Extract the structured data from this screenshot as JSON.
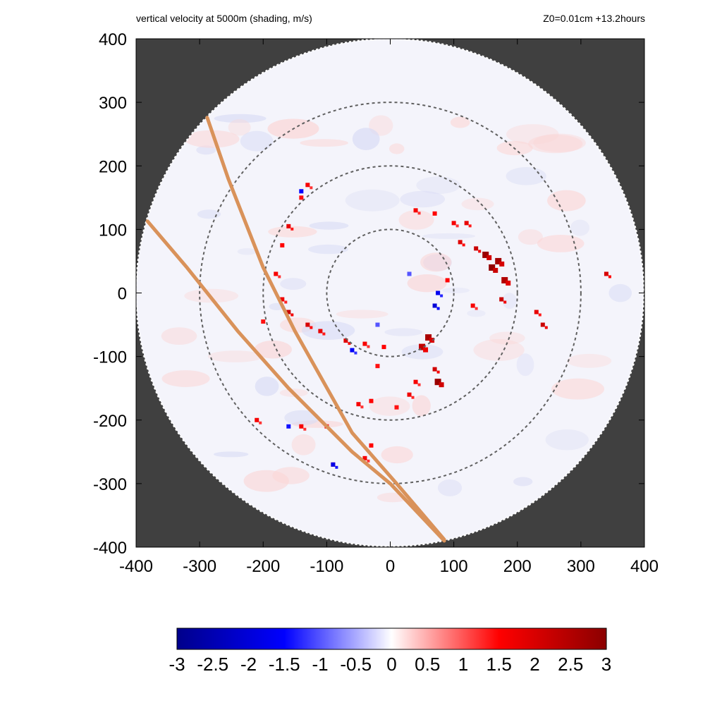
{
  "header": {
    "left_title": "vertical velocity at 5000m (shading, m/s)",
    "right_title": "Z0=0.01cm  +13.2hours"
  },
  "chart_data": {
    "type": "heatmap",
    "title": "vertical velocity at 5000m (shading, m/s)",
    "annotation": "Z0=0.01cm  +13.2hours",
    "xlim": [
      -400,
      400
    ],
    "ylim": [
      -400,
      400
    ],
    "xticks": [
      -400,
      -300,
      -200,
      -100,
      0,
      100,
      200,
      300,
      400
    ],
    "yticks": [
      -400,
      -300,
      -200,
      -100,
      0,
      100,
      200,
      300,
      400
    ],
    "domain_radius": 400,
    "background_color": "#404040",
    "range_rings": [
      100,
      200,
      300
    ],
    "colorbar": {
      "min": -3,
      "max": 3,
      "ticks": [
        "-3",
        "-2.5",
        "-2",
        "-1.5",
        "-1",
        "-0.5",
        "0",
        "0.5",
        "1",
        "1.5",
        "2",
        "2.5",
        "3"
      ],
      "colors": [
        "#00008b",
        "#0000ff",
        "#ffffff",
        "#ff0000",
        "#8b0000"
      ]
    },
    "tracks": [
      {
        "color": "#d9925a",
        "points": [
          [
            -288,
            276
          ],
          [
            -255,
            180
          ],
          [
            -200,
            40
          ],
          [
            -150,
            -60
          ],
          [
            -60,
            -220
          ],
          [
            10,
            -300
          ],
          [
            85,
            -388
          ]
        ]
      },
      {
        "color": "#d9925a",
        "points": [
          [
            -382,
            113
          ],
          [
            -320,
            40
          ],
          [
            -240,
            -60
          ],
          [
            -160,
            -150
          ],
          [
            -60,
            -250
          ],
          [
            0,
            -300
          ],
          [
            85,
            -390
          ]
        ]
      }
    ],
    "features": [
      {
        "x": -130,
        "y": 170,
        "w": 1.6
      },
      {
        "x": -140,
        "y": 150,
        "w": 1.4
      },
      {
        "x": -160,
        "y": 105,
        "w": 1.8
      },
      {
        "x": -170,
        "y": 75,
        "w": 1.5
      },
      {
        "x": -180,
        "y": 30,
        "w": 1.6
      },
      {
        "x": -170,
        "y": -10,
        "w": 1.7
      },
      {
        "x": -160,
        "y": -30,
        "w": 2.2
      },
      {
        "x": -130,
        "y": -50,
        "w": 2.0
      },
      {
        "x": -110,
        "y": -60,
        "w": 1.8
      },
      {
        "x": -70,
        "y": -75,
        "w": 1.9
      },
      {
        "x": -40,
        "y": -80,
        "w": 1.6
      },
      {
        "x": -10,
        "y": -85,
        "w": 1.5
      },
      {
        "x": 50,
        "y": -85,
        "w": 2.3
      },
      {
        "x": 60,
        "y": -70,
        "w": 2.6
      },
      {
        "x": 70,
        "y": -120,
        "w": 2.1
      },
      {
        "x": 75,
        "y": -140,
        "w": 2.8
      },
      {
        "x": 40,
        "y": -140,
        "w": 1.6
      },
      {
        "x": 30,
        "y": -160,
        "w": 1.7
      },
      {
        "x": 10,
        "y": -180,
        "w": 1.4
      },
      {
        "x": -30,
        "y": -170,
        "w": 1.5
      },
      {
        "x": -50,
        "y": -175,
        "w": 1.6
      },
      {
        "x": -20,
        "y": -115,
        "w": 1.4
      },
      {
        "x": 100,
        "y": 110,
        "w": 1.6
      },
      {
        "x": 110,
        "y": 80,
        "w": 1.9
      },
      {
        "x": 120,
        "y": 110,
        "w": 1.8
      },
      {
        "x": 135,
        "y": 70,
        "w": 2.2
      },
      {
        "x": 150,
        "y": 60,
        "w": 2.8
      },
      {
        "x": 160,
        "y": 40,
        "w": 2.9
      },
      {
        "x": 170,
        "y": 50,
        "w": 2.7
      },
      {
        "x": 180,
        "y": 20,
        "w": 2.5
      },
      {
        "x": 175,
        "y": -10,
        "w": 2.2
      },
      {
        "x": 130,
        "y": -20,
        "w": 1.6
      },
      {
        "x": 90,
        "y": 20,
        "w": 1.5
      },
      {
        "x": 40,
        "y": 130,
        "w": 1.6
      },
      {
        "x": 70,
        "y": 125,
        "w": 1.5
      },
      {
        "x": 240,
        "y": -50,
        "w": 2.2
      },
      {
        "x": 230,
        "y": -30,
        "w": 1.8
      },
      {
        "x": 340,
        "y": 30,
        "w": 2.0
      },
      {
        "x": -210,
        "y": -200,
        "w": 1.6
      },
      {
        "x": -140,
        "y": -210,
        "w": 1.6
      },
      {
        "x": -100,
        "y": -210,
        "w": 1.4
      },
      {
        "x": -30,
        "y": -240,
        "w": 1.5
      },
      {
        "x": -40,
        "y": -260,
        "w": 1.6
      },
      {
        "x": -90,
        "y": -270,
        "w": 1.4
      },
      {
        "x": -200,
        "y": -45,
        "w": 1.4
      },
      {
        "x": 70,
        "y": -20,
        "w": -2.0
      },
      {
        "x": 75,
        "y": 0,
        "w": -1.7
      },
      {
        "x": -60,
        "y": -90,
        "w": -1.6
      },
      {
        "x": -140,
        "y": 160,
        "w": -1.5
      },
      {
        "x": -90,
        "y": -270,
        "w": -1.8
      },
      {
        "x": -160,
        "y": -210,
        "w": -1.4
      },
      {
        "x": 30,
        "y": 30,
        "w": -1.0
      },
      {
        "x": -20,
        "y": -50,
        "w": -1.0
      }
    ]
  }
}
